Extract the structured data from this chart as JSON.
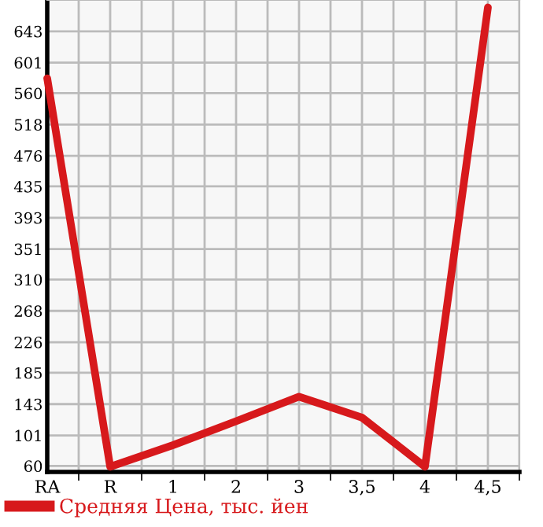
{
  "chart_data": {
    "type": "line",
    "categories": [
      "RA",
      "R",
      "1",
      "2",
      "3",
      "3,5",
      "4",
      "4,5"
    ],
    "series": [
      {
        "name": "Средняя Цена, тыс. йен",
        "color": "#d7191c",
        "values": [
          580,
          59,
          88,
          120,
          153,
          125,
          59,
          675
        ]
      }
    ],
    "ylim": [
      52,
      685
    ],
    "yticks": [
      60,
      101,
      143,
      185,
      226,
      268,
      310,
      351,
      393,
      435,
      476,
      518,
      560,
      601,
      643
    ],
    "grid": true,
    "legend": "bottom",
    "marker": "none",
    "line_style": "solid"
  }
}
